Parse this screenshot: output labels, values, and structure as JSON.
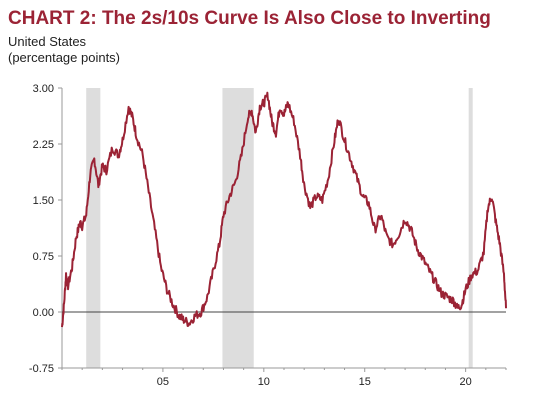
{
  "colors": {
    "title": "#9b2335",
    "series": "#9b2335",
    "recession": "#dddddd",
    "axis": "#999999",
    "zero_line": "#444444"
  },
  "chart_data": {
    "type": "line",
    "title": "CHART 2: The 2s/10s Curve Is Also Close to Inverting",
    "subtitle": "United States",
    "ylabel": "(percentage points)",
    "xlabel": "",
    "xlim": [
      2000.0,
      2022.0
    ],
    "ylim": [
      -0.75,
      3.0
    ],
    "yticks": [
      -0.75,
      0.0,
      0.75,
      1.5,
      2.25,
      3.0
    ],
    "ytick_labels": [
      "-0.75",
      "0.00",
      "0.75",
      "1.50",
      "2.25",
      "3.00"
    ],
    "xticks": [
      2005,
      2010,
      2015,
      2020
    ],
    "xtick_labels": [
      "05",
      "10",
      "15",
      "20"
    ],
    "recessions": [
      [
        2001.2,
        2001.9
      ],
      [
        2007.95,
        2009.5
      ],
      [
        2020.15,
        2020.35
      ]
    ],
    "grid": "none",
    "legend": "none",
    "series": [
      {
        "x": [
          2000.0,
          2000.1,
          2000.2,
          2000.3,
          2000.5,
          2000.7,
          2000.9,
          2001.0,
          2001.2,
          2001.4,
          2001.6,
          2001.8,
          2002.0,
          2002.2,
          2002.5,
          2002.8,
          2003.0,
          2003.3,
          2003.5,
          2003.7,
          2004.0,
          2004.3,
          2004.6,
          2004.9,
          2005.2,
          2005.5,
          2005.8,
          2006.0,
          2006.3,
          2006.6,
          2006.9,
          2007.2,
          2007.5,
          2007.8,
          2008.0,
          2008.3,
          2008.6,
          2008.9,
          2009.2,
          2009.4,
          2009.6,
          2009.8,
          2010.0,
          2010.2,
          2010.4,
          2010.6,
          2010.8,
          2011.0,
          2011.2,
          2011.5,
          2011.8,
          2012.0,
          2012.3,
          2012.6,
          2012.9,
          2013.2,
          2013.5,
          2013.7,
          2014.0,
          2014.3,
          2014.6,
          2014.9,
          2015.2,
          2015.5,
          2015.8,
          2016.1,
          2016.4,
          2016.7,
          2017.0,
          2017.3,
          2017.6,
          2017.9,
          2018.2,
          2018.5,
          2018.8,
          2019.1,
          2019.4,
          2019.6,
          2019.8,
          2020.0,
          2020.3,
          2020.6,
          2020.9,
          2021.1,
          2021.3,
          2021.5,
          2021.7,
          2021.9,
          2022.0
        ],
        "values": [
          -0.2,
          0.1,
          0.5,
          0.35,
          0.6,
          1.0,
          1.2,
          1.15,
          1.3,
          1.85,
          2.05,
          1.7,
          1.95,
          1.9,
          2.2,
          2.1,
          2.3,
          2.75,
          2.6,
          2.35,
          2.1,
          1.6,
          1.1,
          0.6,
          0.3,
          0.1,
          -0.05,
          -0.1,
          -0.15,
          -0.05,
          0.0,
          0.2,
          0.55,
          0.9,
          1.3,
          1.55,
          1.75,
          2.1,
          2.6,
          2.7,
          2.4,
          2.75,
          2.8,
          2.9,
          2.55,
          2.4,
          2.75,
          2.65,
          2.8,
          2.55,
          2.1,
          1.7,
          1.4,
          1.55,
          1.5,
          1.8,
          2.3,
          2.6,
          2.3,
          2.05,
          1.8,
          1.55,
          1.45,
          1.1,
          1.3,
          1.0,
          0.9,
          1.05,
          1.25,
          1.1,
          0.85,
          0.7,
          0.55,
          0.4,
          0.25,
          0.2,
          0.15,
          0.05,
          0.1,
          0.3,
          0.5,
          0.55,
          0.8,
          1.4,
          1.55,
          1.2,
          0.9,
          0.5,
          0.05
        ]
      }
    ]
  }
}
